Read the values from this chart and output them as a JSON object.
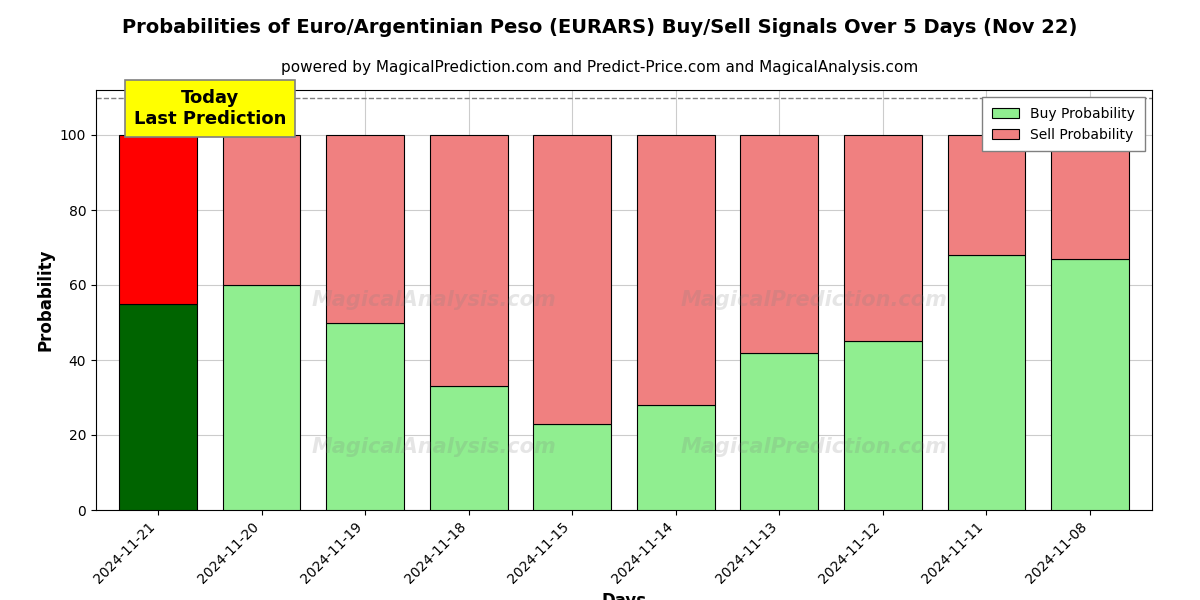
{
  "title": "Probabilities of Euro/Argentinian Peso (EURARS) Buy/Sell Signals Over 5 Days (Nov 22)",
  "subtitle": "powered by MagicalPrediction.com and Predict-Price.com and MagicalAnalysis.com",
  "xlabel": "Days",
  "ylabel": "Probability",
  "categories": [
    "2024-11-21",
    "2024-11-20",
    "2024-11-19",
    "2024-11-18",
    "2024-11-15",
    "2024-11-14",
    "2024-11-13",
    "2024-11-12",
    "2024-11-11",
    "2024-11-08"
  ],
  "buy_values": [
    55,
    60,
    50,
    33,
    23,
    28,
    42,
    45,
    68,
    67
  ],
  "sell_values": [
    45,
    40,
    50,
    67,
    77,
    72,
    58,
    55,
    32,
    33
  ],
  "today_buy_color": "#006400",
  "today_sell_color": "#FF0000",
  "buy_color": "#90EE90",
  "sell_color": "#F08080",
  "today_annotation_bg": "#FFFF00",
  "today_annotation_text": "Today\nLast Prediction",
  "ylim": [
    0,
    112
  ],
  "yticks": [
    0,
    20,
    40,
    60,
    80,
    100
  ],
  "dashed_line_y": 110,
  "background_color": "#ffffff",
  "grid_color": "#cccccc",
  "title_fontsize": 14,
  "subtitle_fontsize": 11,
  "label_fontsize": 12,
  "tick_fontsize": 10,
  "bar_width": 0.75,
  "legend_buy_label": "Buy Probability",
  "legend_sell_label": "Sell Probability"
}
